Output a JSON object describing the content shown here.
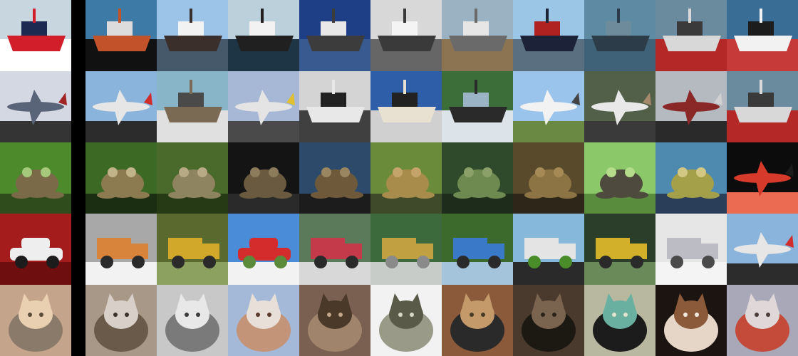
{
  "grid": {
    "rows": [
      {
        "query": {
          "subject": "ship",
          "palette": [
            "#c8d6e0",
            "#ffffff",
            "#d21e2a",
            "#1c2a52"
          ]
        },
        "neighbors": [
          {
            "subject": "ship",
            "palette": [
              "#3e7aa6",
              "#111111",
              "#c2522a",
              "#dcdcdc"
            ]
          },
          {
            "subject": "ship",
            "palette": [
              "#9cc4e8",
              "#46596a",
              "#3a2f2a",
              "#f2f2f2"
            ]
          },
          {
            "subject": "ship",
            "palette": [
              "#bcd0dc",
              "#1e3546",
              "#202020",
              "#f2f2f2"
            ]
          },
          {
            "subject": "ship",
            "palette": [
              "#1e3f86",
              "#385a90",
              "#3c3c3c",
              "#e8e8e8"
            ]
          },
          {
            "subject": "ship",
            "palette": [
              "#d8d8d8",
              "#666666",
              "#3a3a3a",
              "#f4f4f4"
            ]
          },
          {
            "subject": "ship",
            "palette": [
              "#9ab2c2",
              "#8c7452",
              "#6a6a6a",
              "#e6e6e6"
            ]
          },
          {
            "subject": "ship",
            "palette": [
              "#9cc6e6",
              "#5a7080",
              "#1c2238",
              "#b02222"
            ]
          },
          {
            "subject": "ship",
            "palette": [
              "#5e8aa4",
              "#406278",
              "#2c3c48",
              "#6e8b9c"
            ]
          },
          {
            "subject": "ship",
            "palette": [
              "#6a8a9e",
              "#b42828",
              "#d8d8d8",
              "#3a3a3a"
            ]
          },
          {
            "subject": "ship",
            "palette": [
              "#3a6d96",
              "#c63a3a",
              "#f2f2f2",
              "#1c1c1c"
            ]
          }
        ]
      },
      {
        "query": {
          "subject": "airplane",
          "palette": [
            "#d4d8e2",
            "#5a6478",
            "#a02626",
            "#343434"
          ]
        },
        "neighbors": [
          {
            "subject": "airplane",
            "palette": [
              "#8ab4dc",
              "#e6e6e6",
              "#d02c2c",
              "#2c2c2c"
            ]
          },
          {
            "subject": "ship",
            "palette": [
              "#88b6c8",
              "#e0e0e0",
              "#7a6a54",
              "#4a4a4a"
            ]
          },
          {
            "subject": "airplane",
            "palette": [
              "#a6b8d6",
              "#e4e4e4",
              "#e0c030",
              "#4a4a4a"
            ]
          },
          {
            "subject": "ship",
            "palette": [
              "#d4d4d4",
              "#404040",
              "#e8e8e8",
              "#222222"
            ]
          },
          {
            "subject": "ship",
            "palette": [
              "#2e5ea8",
              "#d0d0d0",
              "#e8e0d0",
              "#222222"
            ]
          },
          {
            "subject": "ship",
            "palette": [
              "#3c6e3a",
              "#dce4ea",
              "#2a2a2a",
              "#9ab4c6"
            ]
          },
          {
            "subject": "airplane",
            "palette": [
              "#9ac4ec",
              "#f2f2f2",
              "#444444",
              "#6a8a44"
            ]
          },
          {
            "subject": "airplane",
            "palette": [
              "#52604a",
              "#e8e8e8",
              "#a48a6a",
              "#3a3a3a"
            ]
          },
          {
            "subject": "airplane",
            "palette": [
              "#b4bac0",
              "#8a2828",
              "#d0d0d0",
              "#2a2a2a"
            ]
          },
          {
            "subject": "ship",
            "palette": [
              "#6a8a9e",
              "#b42828",
              "#d8d8d8",
              "#3a3a3a"
            ]
          }
        ]
      },
      {
        "query": {
          "subject": "frog",
          "palette": [
            "#4c8a2c",
            "#7a6a48",
            "#2e4c1c",
            "#a6c87a"
          ]
        },
        "neighbors": [
          {
            "subject": "frog",
            "palette": [
              "#3c6a24",
              "#8c7a50",
              "#1c2e12",
              "#c2b48a"
            ]
          },
          {
            "subject": "frog",
            "palette": [
              "#4a6a2c",
              "#8e8460",
              "#263a16",
              "#b8aa84"
            ]
          },
          {
            "subject": "frog",
            "palette": [
              "#141414",
              "#6a5a40",
              "#2a2a2a",
              "#8c7c5c"
            ]
          },
          {
            "subject": "frog",
            "palette": [
              "#2e4a6a",
              "#6e5a3a",
              "#1c1c1c",
              "#9a8660"
            ]
          },
          {
            "subject": "frog",
            "palette": [
              "#6a8c3a",
              "#a88c4c",
              "#3e4a2a",
              "#c4a46a"
            ]
          },
          {
            "subject": "frog",
            "palette": [
              "#2e4a2a",
              "#6e8a50",
              "#1e2c1c",
              "#8aa068"
            ]
          },
          {
            "subject": "frog",
            "palette": [
              "#5a4a2c",
              "#8c7444",
              "#2e2618",
              "#a68a56"
            ]
          },
          {
            "subject": "frog",
            "palette": [
              "#8ac86a",
              "#4e4a3e",
              "#5a8c3e",
              "#b4dc8a"
            ]
          },
          {
            "subject": "frog",
            "palette": [
              "#4e8ab0",
              "#a4a04a",
              "#2a3e5a",
              "#d2c884"
            ]
          },
          {
            "subject": "airplane",
            "palette": [
              "#0c0c0c",
              "#d63a2a",
              "#1c1c1c",
              "#ea6a52"
            ]
          }
        ]
      },
      {
        "query": {
          "subject": "car",
          "palette": [
            "#a41c1c",
            "#eeeeee",
            "#1c1c1c",
            "#6e0e0e"
          ]
        },
        "neighbors": [
          {
            "subject": "truck",
            "palette": [
              "#a8a8a8",
              "#d8843a",
              "#2a2a2a",
              "#f2f2f2"
            ]
          },
          {
            "subject": "truck",
            "palette": [
              "#5a6a2e",
              "#d2a82a",
              "#2a2a2a",
              "#8ca060"
            ]
          },
          {
            "subject": "car",
            "palette": [
              "#4a8cd8",
              "#d42c2c",
              "#5a8a3a",
              "#f2f2f2"
            ]
          },
          {
            "subject": "truck",
            "palette": [
              "#5a7a5a",
              "#c43a4a",
              "#2a2a2a",
              "#d8d8d8"
            ]
          },
          {
            "subject": "truck",
            "palette": [
              "#3c6a3c",
              "#c0a040",
              "#8a8a8a",
              "#c8ccc8"
            ]
          },
          {
            "subject": "truck",
            "palette": [
              "#3c6a2c",
              "#3a78c8",
              "#2a2a2a",
              "#a4c4dc"
            ]
          },
          {
            "subject": "truck",
            "palette": [
              "#86b8dc",
              "#e4e4e4",
              "#4a8c2a",
              "#2a2a2a"
            ]
          },
          {
            "subject": "truck",
            "palette": [
              "#2a3e2a",
              "#d2b02a",
              "#2a2a2a",
              "#6a8a5a"
            ]
          },
          {
            "subject": "truck",
            "palette": [
              "#e6e6e6",
              "#bcbcc4",
              "#4a4a4a",
              "#f4f4f4"
            ]
          },
          {
            "subject": "airplane",
            "palette": [
              "#8ab4dc",
              "#e6e6e6",
              "#d02c2c",
              "#2c2c2c"
            ]
          }
        ]
      },
      {
        "query": {
          "subject": "cat",
          "palette": [
            "#c4a48a",
            "#8a7a6a",
            "#e8d0b0",
            "#5a4a3a"
          ]
        },
        "neighbors": [
          {
            "subject": "cat",
            "palette": [
              "#a89888",
              "#6a5a4a",
              "#d8d0c8",
              "#3a3028"
            ]
          },
          {
            "subject": "cat",
            "palette": [
              "#c8c8c8",
              "#7a7a7a",
              "#e8e8e8",
              "#3a3a3a"
            ]
          },
          {
            "subject": "cat",
            "palette": [
              "#a4b8d8",
              "#c49478",
              "#e8e0d8",
              "#5a3a2a"
            ]
          },
          {
            "subject": "cat",
            "palette": [
              "#7a6050",
              "#a0846c",
              "#4a3828",
              "#c4a88c"
            ]
          },
          {
            "subject": "cat",
            "palette": [
              "#f2f2f2",
              "#9a9a88",
              "#5a5a48",
              "#d8d8c8"
            ]
          },
          {
            "subject": "cat",
            "palette": [
              "#8a5a3a",
              "#2a2a2a",
              "#c49a6a",
              "#4a3a2a"
            ]
          },
          {
            "subject": "cat",
            "palette": [
              "#4a3a2e",
              "#1c1812",
              "#7a6450",
              "#2a241c"
            ]
          },
          {
            "subject": "cat",
            "palette": [
              "#b8b8a0",
              "#1c1c1c",
              "#6ab0a0",
              "#e2e2d0"
            ]
          },
          {
            "subject": "dog",
            "palette": [
              "#1c1410",
              "#e6d6c8",
              "#8a5a3a",
              "#f2eae0"
            ]
          },
          {
            "subject": "cat",
            "palette": [
              "#a8a8b8",
              "#c44a3a",
              "#e0d8d8",
              "#4a3a3a"
            ]
          }
        ]
      }
    ]
  }
}
